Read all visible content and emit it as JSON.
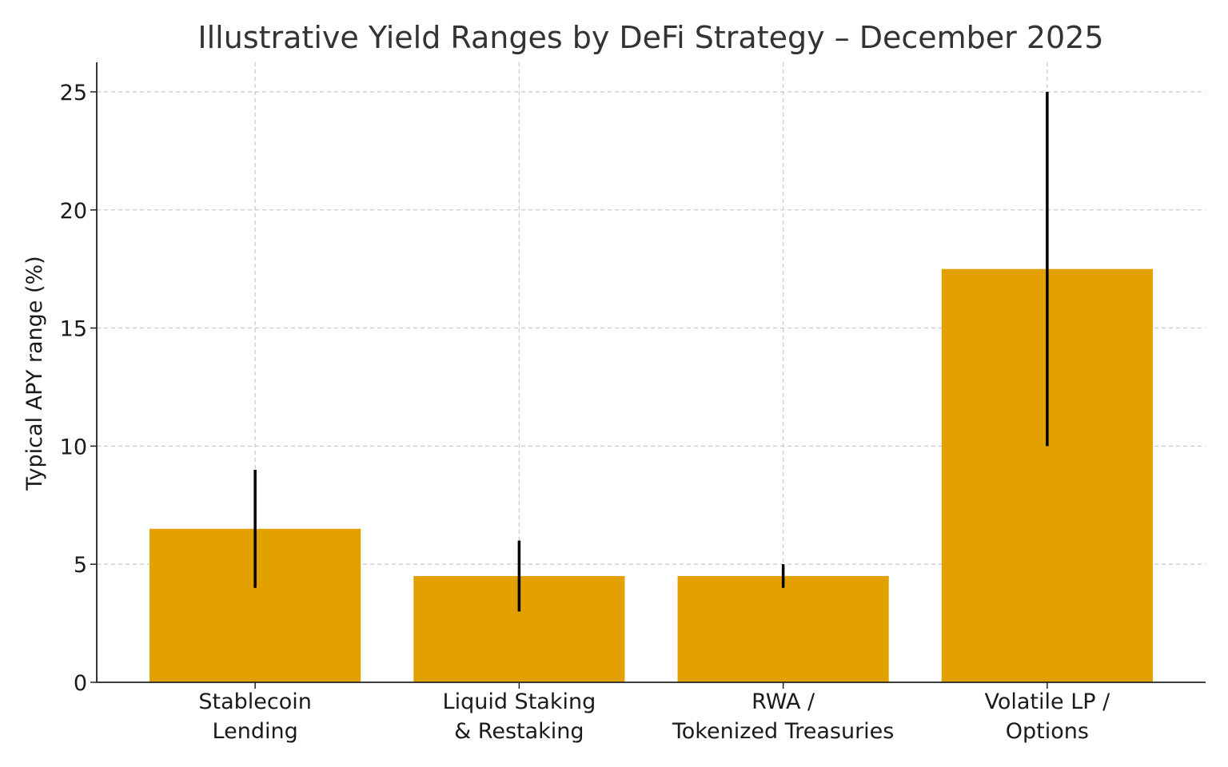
{
  "chart_data": {
    "type": "bar",
    "title": "Illustrative Yield Ranges by DeFi Strategy – December 2025",
    "xlabel": "",
    "ylabel": "Typical APY range (%)",
    "categories": [
      [
        "Stablecoin",
        "Lending"
      ],
      [
        "Liquid Staking",
        "& Restaking"
      ],
      [
        "RWA /",
        "Tokenized Treasuries"
      ],
      [
        "Volatile LP /",
        "Options"
      ]
    ],
    "values": [
      6.5,
      4.5,
      4.5,
      17.5
    ],
    "ranges": [
      [
        4,
        9
      ],
      [
        3,
        6
      ],
      [
        4,
        5
      ],
      [
        10,
        25
      ]
    ],
    "ylim": [
      0,
      26.25
    ],
    "yticks": [
      0,
      5,
      10,
      15,
      20,
      25
    ],
    "grid": true,
    "bar_color": "#E3A001",
    "error_color": "#000000",
    "grid_color": "#cccccc"
  }
}
